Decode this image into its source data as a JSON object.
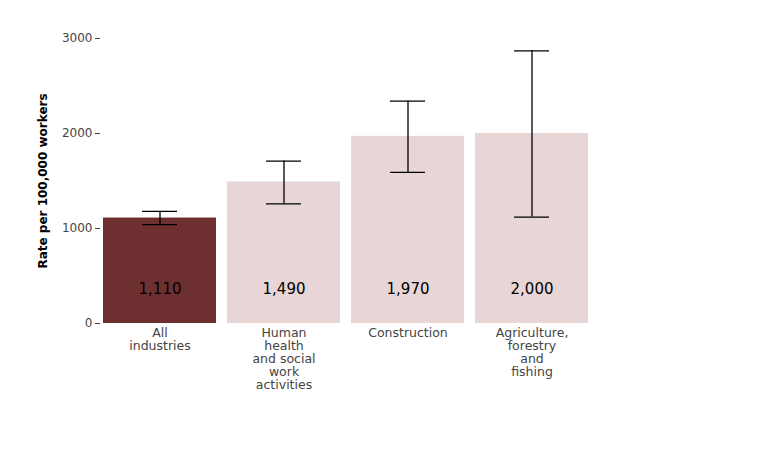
{
  "chart_data": {
    "type": "bar",
    "categories": [
      "All\nindustries",
      "Human\nhealth\nand social\nwork\nactivities",
      "Construction",
      "Agriculture,\nforestry\nand\nfishing"
    ],
    "values": [
      1110,
      1490,
      1970,
      2000
    ],
    "value_labels": [
      "1,110",
      "1,490",
      "1,970",
      "2,000"
    ],
    "ci_lower": [
      1040,
      1260,
      1590,
      1120
    ],
    "ci_upper": [
      1180,
      1710,
      2340,
      2870
    ],
    "colors": [
      "#6e2f30",
      "#e8d5d5",
      "#e8d5d5",
      "#e8d5d5"
    ],
    "y_label": "Rate per 100,000 workers",
    "ylim": [
      0,
      3000
    ],
    "yticks": [
      0,
      1000,
      2000,
      3000
    ],
    "data_labels": true,
    "grid": false
  }
}
